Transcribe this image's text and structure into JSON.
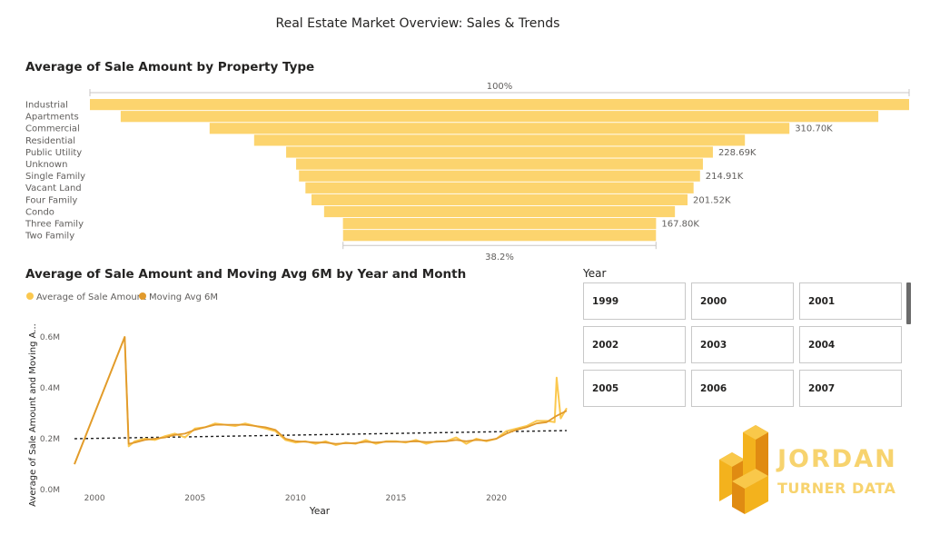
{
  "page": {
    "title": "Real Estate Market Overview: Sales & Trends"
  },
  "funnel": {
    "title": "Average of Sale Amount by Property Type",
    "top_label": "100%",
    "bottom_label": "38.2%",
    "bar_color": "#fcd46e",
    "chart_data": {
      "type": "bar",
      "categories": [
        "Industrial",
        "Apartments",
        "Commercial",
        "Residential",
        "Public Utility",
        "Unknown",
        "Single Family",
        "Vacant Land",
        "Four Family",
        "Condo",
        "Three Family",
        "Two Family"
      ],
      "values": [
        439000,
        406000,
        310700,
        263000,
        228690,
        218000,
        214910,
        208000,
        201520,
        188000,
        167800,
        167700
      ],
      "data_labels": [
        "",
        "",
        "310.70K",
        "",
        "228.69K",
        "",
        "214.91K",
        "",
        "201.52K",
        "",
        "167.80K",
        ""
      ]
    }
  },
  "line": {
    "title": "Average of Sale Amount and Moving Avg 6M by Year and Month",
    "legend": [
      {
        "name": "Average of Sale Amount",
        "color": "#fbc84f"
      },
      {
        "name": "Moving Avg 6M",
        "color": "#e19a2c"
      }
    ],
    "chart_data": {
      "type": "line",
      "xlabel": "Year",
      "ylabel": "Average of Sale Amount and Moving A...",
      "xlim": [
        1999,
        2023.5
      ],
      "ylim": [
        0,
        0.6
      ],
      "x_ticks": [
        "2000",
        "2005",
        "2010",
        "2015",
        "2020"
      ],
      "y_ticks": [
        "0.0M",
        "0.2M",
        "0.4M",
        "0.6M"
      ],
      "trend_line": {
        "x": [
          1999,
          2023.5
        ],
        "y": [
          0.2,
          0.232
        ]
      },
      "series": [
        {
          "name": "Average of Sale Amount",
          "x": [
            1999.0,
            2001.5,
            2001.7,
            2002.0,
            2002.5,
            2003.0,
            2003.5,
            2004.0,
            2004.5,
            2005.0,
            2005.5,
            2006.0,
            2006.5,
            2007.0,
            2007.5,
            2008.0,
            2008.5,
            2009.0,
            2009.5,
            2010.0,
            2010.5,
            2011.0,
            2011.5,
            2012.0,
            2012.5,
            2013.0,
            2013.5,
            2014.0,
            2014.5,
            2015.0,
            2015.5,
            2016.0,
            2016.5,
            2017.0,
            2017.5,
            2018.0,
            2018.5,
            2019.0,
            2019.5,
            2020.0,
            2020.5,
            2021.0,
            2021.5,
            2022.0,
            2022.5,
            2022.9,
            2023.0,
            2023.2,
            2023.5
          ],
          "y": [
            0.1,
            0.6,
            0.17,
            0.19,
            0.2,
            0.195,
            0.21,
            0.22,
            0.205,
            0.24,
            0.245,
            0.26,
            0.255,
            0.25,
            0.26,
            0.25,
            0.24,
            0.23,
            0.195,
            0.185,
            0.19,
            0.18,
            0.19,
            0.175,
            0.185,
            0.18,
            0.195,
            0.18,
            0.19,
            0.19,
            0.185,
            0.195,
            0.18,
            0.19,
            0.19,
            0.205,
            0.18,
            0.2,
            0.19,
            0.2,
            0.23,
            0.24,
            0.25,
            0.27,
            0.27,
            0.265,
            0.44,
            0.28,
            0.32
          ]
        },
        {
          "name": "Moving Avg 6M",
          "x": [
            1999.0,
            2001.5,
            2001.7,
            2002.0,
            2002.5,
            2003.0,
            2003.5,
            2004.0,
            2004.5,
            2005.0,
            2005.5,
            2006.0,
            2006.5,
            2007.0,
            2007.5,
            2008.0,
            2008.5,
            2009.0,
            2009.5,
            2010.0,
            2010.5,
            2011.0,
            2011.5,
            2012.0,
            2012.5,
            2013.0,
            2013.5,
            2014.0,
            2014.5,
            2015.0,
            2015.5,
            2016.0,
            2016.5,
            2017.0,
            2017.5,
            2018.0,
            2018.5,
            2019.0,
            2019.5,
            2020.0,
            2020.5,
            2021.0,
            2021.5,
            2022.0,
            2022.5,
            2023.0,
            2023.5
          ],
          "y": [
            0.1,
            0.6,
            0.18,
            0.185,
            0.195,
            0.2,
            0.205,
            0.215,
            0.22,
            0.235,
            0.245,
            0.255,
            0.255,
            0.255,
            0.255,
            0.25,
            0.245,
            0.235,
            0.2,
            0.19,
            0.188,
            0.185,
            0.185,
            0.18,
            0.182,
            0.183,
            0.188,
            0.185,
            0.188,
            0.188,
            0.188,
            0.19,
            0.187,
            0.188,
            0.19,
            0.195,
            0.19,
            0.195,
            0.193,
            0.2,
            0.22,
            0.235,
            0.245,
            0.26,
            0.265,
            0.29,
            0.31
          ]
        }
      ]
    }
  },
  "slicer": {
    "header": "Year",
    "items": [
      "1999",
      "2000",
      "2001",
      "2002",
      "2003",
      "2004",
      "2005",
      "2006",
      "2007"
    ]
  },
  "logo": {
    "line1": "JORDAN",
    "line2": "TURNER DATA",
    "color": "#f7d36e"
  }
}
